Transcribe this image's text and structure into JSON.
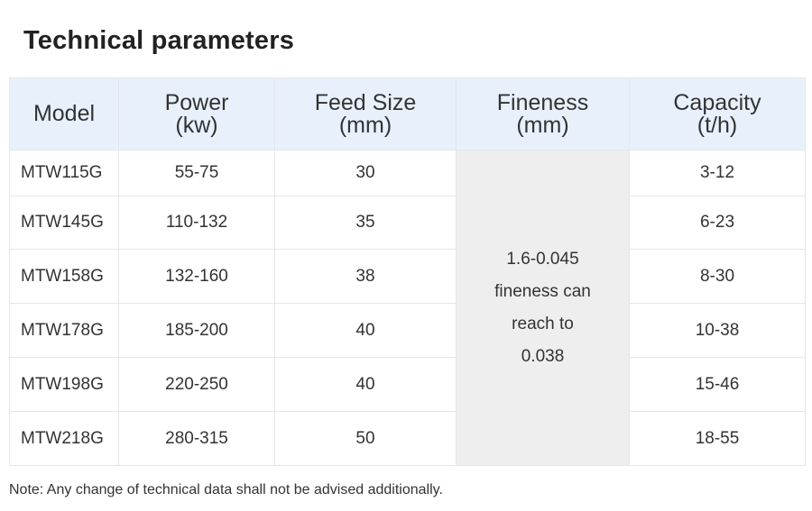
{
  "title": "Technical parameters",
  "table": {
    "headers": [
      {
        "line1": "Model",
        "line2": ""
      },
      {
        "line1": "Power",
        "line2": "(kw)"
      },
      {
        "line1": "Feed Size",
        "line2": "(mm)"
      },
      {
        "line1": "Fineness",
        "line2": "(mm)"
      },
      {
        "line1": "Capacity",
        "line2": "(t/h)"
      }
    ],
    "rows": [
      {
        "model": "MTW115G",
        "power": "55-75",
        "feed_size": "30",
        "capacity": "3-12"
      },
      {
        "model": "MTW145G",
        "power": "110-132",
        "feed_size": "35",
        "capacity": "6-23"
      },
      {
        "model": "MTW158G",
        "power": "132-160",
        "feed_size": "38",
        "capacity": "8-30"
      },
      {
        "model": "MTW178G",
        "power": "185-200",
        "feed_size": "40",
        "capacity": "10-38"
      },
      {
        "model": "MTW198G",
        "power": "220-250",
        "feed_size": "40",
        "capacity": "15-46"
      },
      {
        "model": "MTW218G",
        "power": "280-315",
        "feed_size": "50",
        "capacity": "18-55"
      }
    ],
    "fineness_merged": {
      "line1": "1.6-0.045",
      "line2": "fineness can",
      "line3": "reach to",
      "line4": "0.038"
    }
  },
  "note": "Note: Any change of technical data shall not be advised additionally."
}
